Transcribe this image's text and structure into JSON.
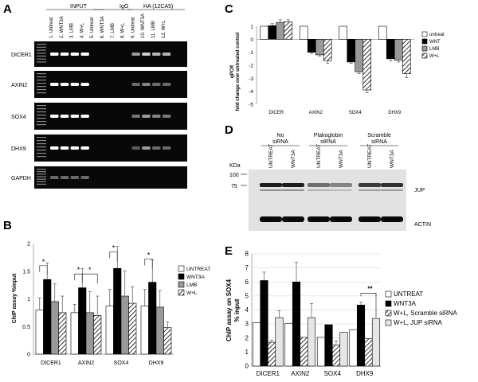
{
  "panel_letters": {
    "a": "A",
    "b": "B",
    "c": "C",
    "d": "D",
    "e": "E"
  },
  "panel_a": {
    "groups": [
      "INPUT",
      "IgG",
      "HA (12CA5)"
    ],
    "lanes": [
      "1. Untreat",
      "2. WNT3A",
      "3. LMB",
      "4. W+L",
      "5. Untreat",
      "6. WNT3A",
      "7. LMB",
      "8. W+L",
      "9. Untreat",
      "10. WNT3A",
      "11. LMB",
      "12. W+L"
    ],
    "genes": [
      "DICER1",
      "AXIN2",
      "SOX4",
      "DHX9",
      "GAPDH"
    ]
  },
  "panel_d": {
    "kda_label": "KDa",
    "markers": [
      "100",
      "75"
    ],
    "groups": [
      "No siRNA",
      "Plakoglobin siRNA",
      "Scramble siRNA"
    ],
    "lanes": [
      "UNTREAT",
      "WNT3A",
      "UNTREAT",
      "WNT3A",
      "UNTREAT",
      "WNT3A"
    ],
    "band_labels": [
      "JUP",
      "ACTIN"
    ]
  },
  "chart_data": [
    {
      "panel": "B",
      "type": "bar",
      "ylabel": "ChIP assay %input",
      "ylim": [
        0,
        2
      ],
      "yticks": [
        "0",
        "0.5",
        "1",
        "1.5",
        "2"
      ],
      "categories": [
        "DICER1",
        "AXIN2",
        "SOX4",
        "DHX9"
      ],
      "series": [
        {
          "name": "UNTREAT",
          "fill": "#ffffff",
          "values": [
            0.8,
            0.75,
            0.87,
            0.87
          ],
          "errors": [
            0.22,
            0.15,
            0.3,
            0.3
          ]
        },
        {
          "name": "WNT3A",
          "fill": "#000000",
          "values": [
            1.35,
            1.2,
            1.55,
            1.3
          ],
          "errors": [
            0.3,
            0.35,
            0.4,
            0.4
          ]
        },
        {
          "name": "LMB",
          "fill": "#999999",
          "values": [
            0.95,
            0.75,
            1.05,
            0.85
          ],
          "errors": [
            0.32,
            0.38,
            0.45,
            0.3
          ]
        },
        {
          "name": "W+L",
          "fill": "hatch",
          "values": [
            0.75,
            0.7,
            0.92,
            0.48
          ],
          "errors": [
            0.3,
            0.35,
            0.3,
            0.1
          ]
        }
      ],
      "significance": [
        "*",
        "*",
        "*",
        "*",
        "*"
      ]
    },
    {
      "panel": "C",
      "type": "bar",
      "ylabel": "fold change over untreated control",
      "ylabel2": "qPCR",
      "ylim": [
        -5,
        1
      ],
      "yticks": [
        "-5",
        "-4",
        "-3",
        "-2",
        "-1",
        "0",
        "1"
      ],
      "categories": [
        "DICER",
        "AXIN2",
        "SOX4",
        "DHX9"
      ],
      "series": [
        {
          "name": "untreat",
          "fill": "#ffffff",
          "values": [
            1,
            1,
            1,
            1
          ],
          "errors": [
            0,
            0,
            0,
            0
          ]
        },
        {
          "name": "WNT",
          "fill": "#000000",
          "values": [
            1.05,
            -1.0,
            -1.75,
            -1.5
          ],
          "errors": [
            0.15,
            0.1,
            0.1,
            0.15
          ]
        },
        {
          "name": "LMB",
          "fill": "#999999",
          "values": [
            1.3,
            -1.2,
            -2.5,
            -1.6
          ],
          "errors": [
            0.2,
            0.1,
            0.15,
            0.15
          ]
        },
        {
          "name": "W+L",
          "fill": "hatch",
          "values": [
            1.35,
            -1.65,
            -3.9,
            -2.65
          ],
          "errors": [
            0.15,
            0.2,
            0.2,
            0.3
          ]
        }
      ]
    },
    {
      "panel": "E",
      "type": "bar",
      "ylabel": "ChIP assay on SOX4",
      "ylabel2": "% input",
      "ylim": [
        0,
        8
      ],
      "yticks": [
        "0",
        "1",
        "2",
        "3",
        "4",
        "5",
        "6",
        "7",
        "8"
      ],
      "categories": [
        "DICER1",
        "AXIN2",
        "SOX4",
        "DHX9"
      ],
      "series": [
        {
          "name": "UNTREAT",
          "fill": "#ffffff",
          "values": [
            3.1,
            3.05,
            2.05,
            2.6
          ],
          "errors": [
            0,
            0,
            0,
            0
          ]
        },
        {
          "name": "WNT3A",
          "fill": "#000000",
          "values": [
            6.1,
            6.0,
            2.95,
            4.35
          ],
          "errors": [
            0.6,
            1.4,
            0.0,
            0.2
          ]
        },
        {
          "name": "W+L, Scramble siRNA",
          "fill": "hatch",
          "values": [
            1.7,
            2.05,
            1.5,
            1.95
          ],
          "errors": [
            0.15,
            0.0,
            0.3,
            0.0
          ]
        },
        {
          "name": "W+L, JUP siRNA",
          "fill": "#e6e6e6",
          "values": [
            3.45,
            3.45,
            2.4,
            3.4
          ],
          "errors": [
            0.5,
            1.0,
            0.0,
            0.0
          ]
        }
      ],
      "significance": [
        "**"
      ]
    }
  ]
}
